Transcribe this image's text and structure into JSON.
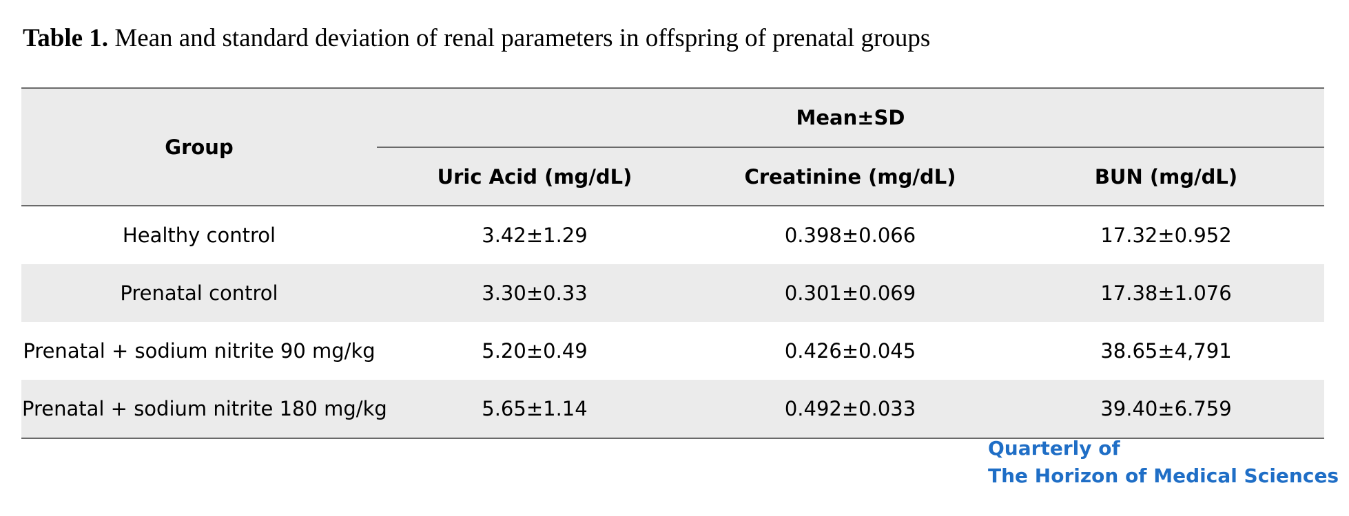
{
  "caption": {
    "label": "Table 1.",
    "text": " Mean and standard deviation of renal parameters in offspring of prenatal groups"
  },
  "table": {
    "group_header": "Group",
    "span_header": "Mean±SD",
    "columns": [
      "Uric Acid (mg/dL)",
      "Creatinine (mg/dL)",
      "BUN (mg/dL)"
    ],
    "rows": [
      {
        "group": "Healthy control",
        "values": [
          "3.42±1.29",
          "0.398±0.066",
          "17.32±0.952"
        ]
      },
      {
        "group": "Prenatal control",
        "values": [
          "3.30±0.33",
          "0.301±0.069",
          "17.38±1.076"
        ]
      },
      {
        "group": "Prenatal + sodium nitrite 90 mg/kg",
        "values": [
          "5.20±0.49",
          "0.426±0.045",
          "38.65±4,791"
        ]
      },
      {
        "group": "Prenatal + sodium nitrite 180 mg/kg",
        "values": [
          "5.65±1.14",
          "0.492±0.033",
          "39.40±6.759"
        ]
      }
    ]
  },
  "logo": {
    "line1": "Quarterly of",
    "line2": "The Horizon of Medical Sciences",
    "color": "#1f6ec6"
  }
}
